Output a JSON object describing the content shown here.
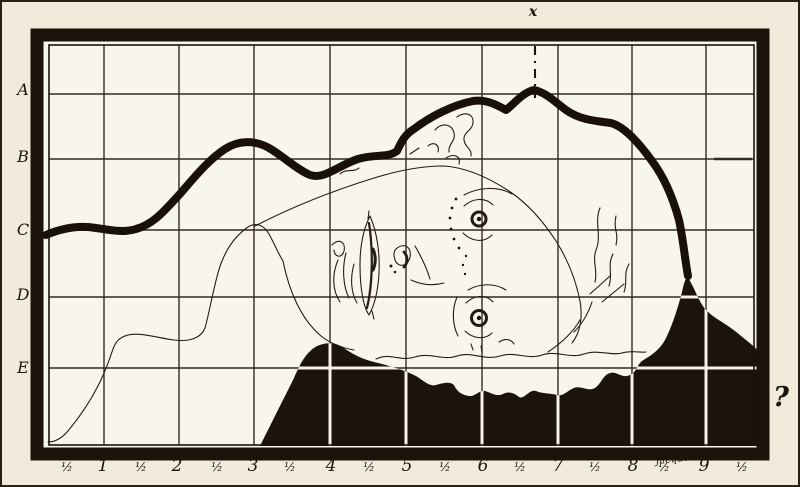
{
  "colors": {
    "paper": "#f1ebdb",
    "paper_inner": "#f8f5ed",
    "ink": "#1c130b",
    "thin_line": "#251b11"
  },
  "grid": {
    "row_labels": [
      "A",
      "B",
      "C",
      "D",
      "E"
    ],
    "column_integer_labels": [
      "1",
      "2",
      "3",
      "4",
      "5",
      "6",
      "7",
      "8",
      "9"
    ],
    "half_tick_label": "½",
    "half_tick_count": 10
  },
  "marks": {
    "top_mark": "x",
    "question_mark": "?",
    "signature": "Jacques"
  }
}
